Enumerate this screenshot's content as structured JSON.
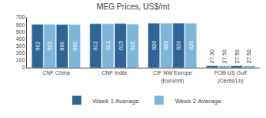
{
  "chart_data": {
    "type": "bar",
    "title": "MEG Prices, US$/mt",
    "categories": [
      "CNF China",
      "CNF India",
      "CIF NW Europe\n(Euro/mt)",
      "FOB US Gulf\n(Cents/Lb)"
    ],
    "series": [
      {
        "name": "Week 1 Average",
        "color": "#2E6496",
        "values": [
          602,
          612,
          620,
          27.3
        ],
        "value_labels": [
          "602",
          "612",
          "620",
          "27.30"
        ]
      },
      {
        "name": "Week 2 Average",
        "color": "#7EB6D9",
        "values": [
          602,
          613,
          620,
          27.5
        ],
        "value_labels": [
          "602",
          "613",
          "620",
          "27.50"
        ]
      },
      {
        "name": "Week 1 Average",
        "color": "#2E6496",
        "values": [
          600,
          615,
          620,
          27.5
        ],
        "value_labels": [
          "600",
          "615",
          "620",
          "27.50"
        ]
      },
      {
        "name": "Week 2 Average",
        "color": "#7EB6D9",
        "values": [
          600,
          605,
          620,
          27.5
        ],
        "value_labels": [
          "600",
          "605",
          "620",
          "27.50"
        ]
      }
    ],
    "ylim": [
      0,
      700
    ],
    "yticks": [
      0,
      100,
      200,
      300,
      400,
      500,
      600,
      700
    ],
    "grid": false,
    "legend": "bottom",
    "data_labels": true
  }
}
